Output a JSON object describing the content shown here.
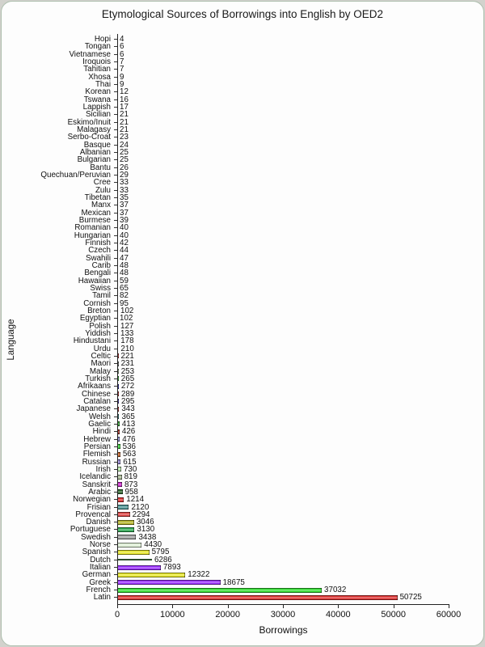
{
  "chart_data": {
    "type": "bar",
    "orientation": "horizontal",
    "title": "Etymological Sources of Borrowings into English by OED2",
    "xlabel": "Borrowings",
    "ylabel": "Language",
    "xlim": [
      0,
      60000
    ],
    "x_ticks": [
      0,
      10000,
      20000,
      30000,
      40000,
      50000,
      60000
    ],
    "grid": false,
    "value_labels_shown": true,
    "bars": [
      {
        "label": "Hopi",
        "value": 4,
        "color": null
      },
      {
        "label": "Tongan",
        "value": 6,
        "color": null
      },
      {
        "label": "Vietnamese",
        "value": 6,
        "color": null
      },
      {
        "label": "Iroquois",
        "value": 7,
        "color": null
      },
      {
        "label": "Tahitian",
        "value": 7,
        "color": null
      },
      {
        "label": "Xhosa",
        "value": 9,
        "color": null
      },
      {
        "label": "Thai",
        "value": 9,
        "color": null
      },
      {
        "label": "Korean",
        "value": 12,
        "color": null
      },
      {
        "label": "Tswana",
        "value": 16,
        "color": null
      },
      {
        "label": "Lappish",
        "value": 17,
        "color": null
      },
      {
        "label": "Sicilian",
        "value": 21,
        "color": null
      },
      {
        "label": "Eskimo/Inuit",
        "value": 21,
        "color": null
      },
      {
        "label": "Malagasy",
        "value": 21,
        "color": null
      },
      {
        "label": "Serbo-Croat",
        "value": 23,
        "color": null
      },
      {
        "label": "Basque",
        "value": 24,
        "color": null
      },
      {
        "label": "Albanian",
        "value": 25,
        "color": null
      },
      {
        "label": "Bulgarian",
        "value": 25,
        "color": null
      },
      {
        "label": "Bantu",
        "value": 26,
        "color": null
      },
      {
        "label": "Quechuan/Peruvian",
        "value": 29,
        "color": null
      },
      {
        "label": "Cree",
        "value": 33,
        "color": null
      },
      {
        "label": "Zulu",
        "value": 33,
        "color": null
      },
      {
        "label": "Tibetan",
        "value": 35,
        "color": null
      },
      {
        "label": "Manx",
        "value": 37,
        "color": null
      },
      {
        "label": "Mexican",
        "value": 37,
        "color": null
      },
      {
        "label": "Burmese",
        "value": 39,
        "color": null
      },
      {
        "label": "Romanian",
        "value": 40,
        "color": null
      },
      {
        "label": "Hungarian",
        "value": 40,
        "color": null
      },
      {
        "label": "Finnish",
        "value": 42,
        "color": null
      },
      {
        "label": "Czech",
        "value": 44,
        "color": null
      },
      {
        "label": "Swahili",
        "value": 47,
        "color": null
      },
      {
        "label": "Carib",
        "value": 48,
        "color": null
      },
      {
        "label": "Bengali",
        "value": 48,
        "color": null
      },
      {
        "label": "Hawaiian",
        "value": 59,
        "color": null
      },
      {
        "label": "Swiss",
        "value": 65,
        "color": null
      },
      {
        "label": "Tamil",
        "value": 82,
        "color": null
      },
      {
        "label": "Cornish",
        "value": 95,
        "color": null
      },
      {
        "label": "Breton",
        "value": 102,
        "color": "#e6e632"
      },
      {
        "label": "Egyptian",
        "value": 102,
        "color": null
      },
      {
        "label": "Polish",
        "value": 127,
        "color": "#8a2be2"
      },
      {
        "label": "Yiddish",
        "value": 133,
        "color": "#e6e632"
      },
      {
        "label": "Hindustani",
        "value": 178,
        "color": "#b0a0e0"
      },
      {
        "label": "Urdu",
        "value": 210,
        "color": "#33cc33"
      },
      {
        "label": "Celtic",
        "value": 221,
        "color": "#e03030"
      },
      {
        "label": "Maori",
        "value": 231,
        "color": "#8c8c8c"
      },
      {
        "label": "Malay",
        "value": 253,
        "color": "#b8dcb0"
      },
      {
        "label": "Turkish",
        "value": 265,
        "color": "#2ed82e"
      },
      {
        "label": "Afrikaans",
        "value": 272,
        "color": "#2929cc"
      },
      {
        "label": "Chinese",
        "value": 289,
        "color": "#e03030"
      },
      {
        "label": "Catalan",
        "value": 295,
        "color": "#4833cc"
      },
      {
        "label": "Japanese",
        "value": 343,
        "color": "#e03030"
      },
      {
        "label": "Welsh",
        "value": 365,
        "color": "#2e8c8c"
      },
      {
        "label": "Gaelic",
        "value": 413,
        "color": "#2ea82e"
      },
      {
        "label": "Hindi",
        "value": 426,
        "color": "#b03020"
      },
      {
        "label": "Hebrew",
        "value": 476,
        "color": "#8c8cd8"
      },
      {
        "label": "Persian",
        "value": 536,
        "color": "#3cd83c"
      },
      {
        "label": "Flemish",
        "value": 563,
        "color": "#cc6629"
      },
      {
        "label": "Russian",
        "value": 615,
        "color": "#9a8ada"
      },
      {
        "label": "Irish",
        "value": 730,
        "color": "#b8e8a8"
      },
      {
        "label": "Icelandic",
        "value": 819,
        "color": "#a8b894"
      },
      {
        "label": "Sanskrit",
        "value": 873,
        "color": "#cc29cc"
      },
      {
        "label": "Arabic",
        "value": 958,
        "color": "#2e662e"
      },
      {
        "label": "Norwegian",
        "value": 1214,
        "color": "#dd3333"
      },
      {
        "label": "Frisian",
        "value": 2120,
        "color": "#4d9494"
      },
      {
        "label": "Provencal",
        "value": 2294,
        "color": "#dd4444"
      },
      {
        "label": "Danish",
        "value": 3046,
        "color": "#b4b429"
      },
      {
        "label": "Portuguese",
        "value": 3130,
        "color": "#2ea852"
      },
      {
        "label": "Swedish",
        "value": 3438,
        "color": "#9e9e9e"
      },
      {
        "label": "Norse",
        "value": 4430,
        "color": "#ddeed4"
      },
      {
        "label": "Spanish",
        "value": 5795,
        "color": "#e6e629"
      },
      {
        "label": "Dutch",
        "value": 6286,
        "color": "#2d4d2d",
        "thin": true
      },
      {
        "label": "Italian",
        "value": 7893,
        "color": "#9b30ff"
      },
      {
        "label": "German",
        "value": 12322,
        "color": "#e6e629"
      },
      {
        "label": "Greek",
        "value": 18675,
        "color": "#9b30ff"
      },
      {
        "label": "French",
        "value": 37032,
        "color": "#33dd33"
      },
      {
        "label": "Latin",
        "value": 50725,
        "color": "#dd3333"
      }
    ]
  }
}
